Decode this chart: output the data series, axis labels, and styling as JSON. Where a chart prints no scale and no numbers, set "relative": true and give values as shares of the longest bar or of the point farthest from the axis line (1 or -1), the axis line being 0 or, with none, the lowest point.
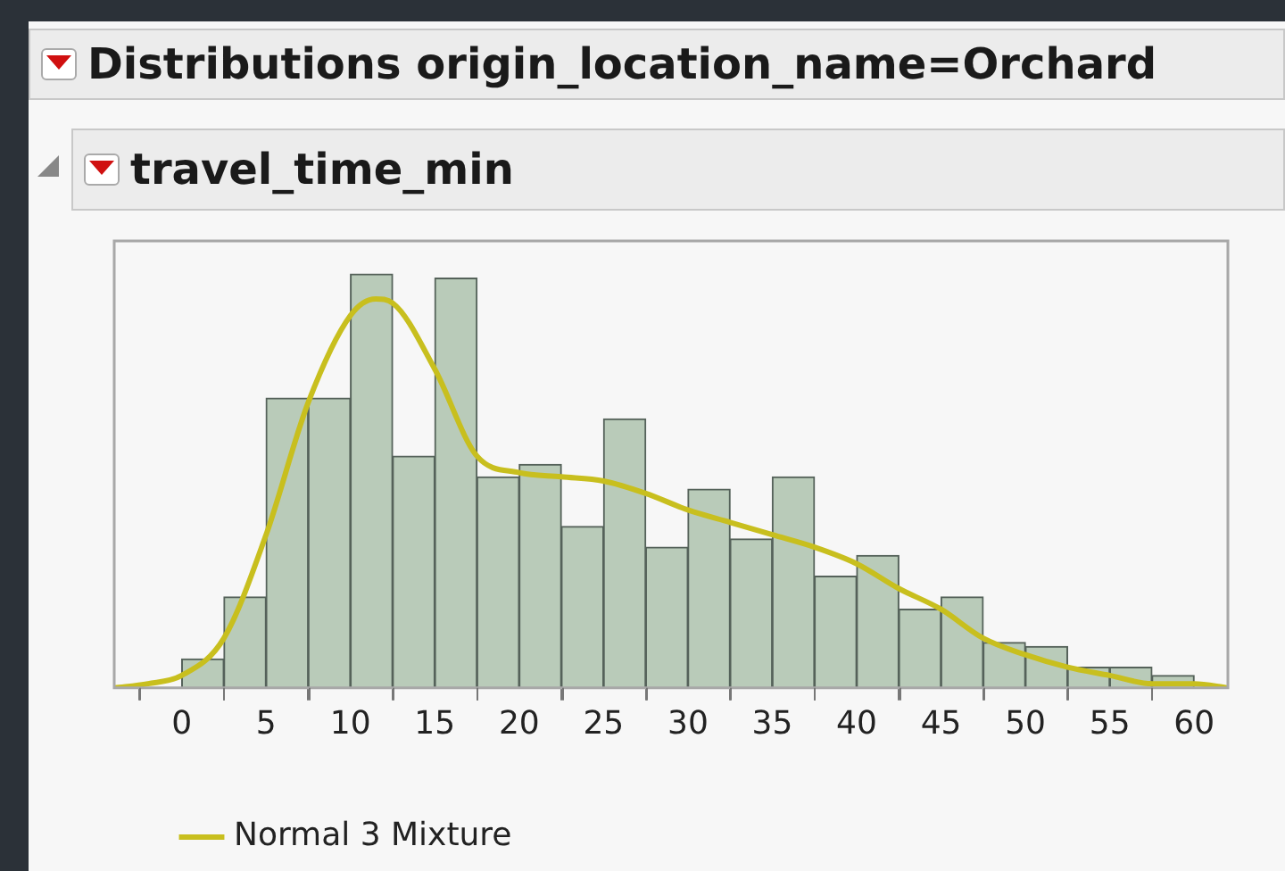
{
  "chart_data": {
    "type": "histogram",
    "title": "Distributions origin_location_name=Orchard",
    "subtitle": "travel_time_min",
    "relative": true,
    "legend": "bottom left",
    "bins": [
      0,
      2.5,
      5,
      7.5,
      10,
      12.5,
      15,
      17.5,
      20,
      22.5,
      25,
      27.5,
      30,
      32.5,
      35,
      37.5,
      40,
      42.5,
      45,
      47.5,
      50,
      52.5,
      55,
      57.5,
      60
    ],
    "xlim": [
      -4,
      62
    ],
    "xticks": [
      {
        "value": -2.5,
        "label": null
      },
      0,
      {
        "value": 2.5,
        "label": null
      },
      5,
      {
        "value": 7.5,
        "label": null
      },
      10,
      {
        "value": 12.5,
        "label": null
      },
      15,
      {
        "value": 17.5,
        "label": null
      },
      20,
      {
        "value": 22.5,
        "label": null
      },
      25,
      {
        "value": 27.5,
        "label": null
      },
      30,
      {
        "value": 32.5,
        "label": null
      },
      35,
      {
        "value": 37.5,
        "label": null
      },
      40,
      {
        "value": 42.5,
        "label": null
      },
      45,
      {
        "value": 47.5,
        "label": null
      },
      50,
      {
        "value": 52.5,
        "label": null
      },
      55,
      {
        "value": 57.5,
        "label": null
      },
      60
    ],
    "color": "#b9cbb9",
    "values": [
      0.07,
      0.22,
      0.7,
      0.7,
      1,
      0.56,
      0.99,
      0.51,
      0.54,
      0.39,
      0.65,
      0.34,
      0.48,
      0.36,
      0.51,
      0.27,
      0.32,
      0.19,
      0.22,
      0.11,
      0.1,
      0.05,
      0.05,
      0.03
    ],
    "series": [
      {
        "type": "line",
        "name": "Normal 3 Mixture",
        "color": "#c8bf1e",
        "x": [
          -4,
          -2,
          0,
          2.5,
          5,
          7.5,
          10,
          11.5,
          12.5,
          15,
          17.5,
          20,
          22.5,
          25,
          27.5,
          30,
          32.5,
          35,
          37.5,
          40,
          42.5,
          45,
          47.5,
          50,
          52.5,
          55,
          57.5,
          60,
          62
        ],
        "values": [
          0,
          0.01,
          0.03,
          0.12,
          0.37,
          0.69,
          0.9,
          0.94,
          0.93,
          0.77,
          0.56,
          0.52,
          0.51,
          0.5,
          0.47,
          0.43,
          0.4,
          0.37,
          0.34,
          0.3,
          0.24,
          0.19,
          0.12,
          0.08,
          0.05,
          0.03,
          0.01,
          0.01,
          0
        ]
      }
    ]
  }
}
